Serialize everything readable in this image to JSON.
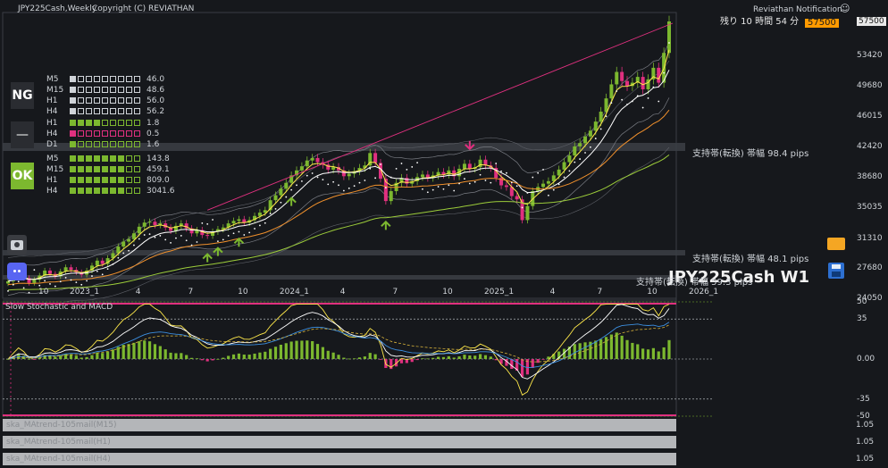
{
  "header": {
    "symbol": "JPY225Cash,Weekly",
    "copyright": "Copyright (C) REVIATHAN",
    "notification": "Reviathan Notification",
    "remaining": "残り 10 時間 54 分",
    "current_price": "57500"
  },
  "watermark": "JPY225Cash W1",
  "badges": {
    "ng": "NG",
    "neutral": "—",
    "ok": "OK"
  },
  "strength_panel": {
    "ng_rows": [
      {
        "tf": "M5",
        "value": "46.0",
        "filled": 1
      },
      {
        "tf": "M15",
        "value": "48.6",
        "filled": 1
      },
      {
        "tf": "H1",
        "value": "56.0",
        "filled": 1
      },
      {
        "tf": "H4",
        "value": "56.2",
        "filled": 1
      }
    ],
    "neutral_rows": [
      {
        "tf": "H1",
        "value": "1.8",
        "color": "green",
        "filled": 4
      },
      {
        "tf": "H4",
        "value": "0.5",
        "color": "pink",
        "filled": 1
      },
      {
        "tf": "D1",
        "value": "1.6",
        "color": "green",
        "filled": 1
      }
    ],
    "ok_rows": [
      {
        "tf": "M5",
        "value": "143.8",
        "filled": 7
      },
      {
        "tf": "M15",
        "value": "459.1",
        "filled": 7
      },
      {
        "tf": "H1",
        "value": "809.0",
        "filled": 7
      },
      {
        "tf": "H4",
        "value": "3041.6",
        "filled": 7
      }
    ]
  },
  "support_labels": [
    "支持帯(転換) 帯幅 98.4 pips",
    "支持帯(転換) 帯幅 48.1 pips",
    "支持帯(転換) 帯幅 59.3 pips"
  ],
  "price_axis": [
    "57500",
    "53420",
    "49680",
    "46015",
    "42420",
    "38680",
    "35035",
    "31310",
    "27680",
    "24050"
  ],
  "osc_axis": [
    "50",
    "35",
    "0.00",
    "-35",
    "-50"
  ],
  "time_axis": [
    "10",
    "2023_1",
    "4",
    "7",
    "10",
    "2024_1",
    "4",
    "7",
    "10",
    "2025_1",
    "4",
    "7",
    "10",
    "2026_1"
  ],
  "subwindow_title": "Slow Stochastic and MACD",
  "indicators": [
    {
      "label": "ska_MAtrend-105mail(M15)",
      "value": "1.05"
    },
    {
      "label": "ska_MAtrend-105mail(H1)",
      "value": "1.05"
    },
    {
      "label": "ska_MAtrend-105mail(H4)",
      "value": "1.05"
    }
  ],
  "colors": {
    "bull": "#7cb82f",
    "bear": "#e0307f",
    "accent": "#ff9a00",
    "grid": "#2a2d33"
  },
  "chart_data": {
    "type": "candlestick",
    "title": "JPY225Cash,Weekly",
    "ylim": [
      24050,
      57500
    ],
    "close": [
      26100,
      26900,
      27300,
      26500,
      25900,
      26300,
      26800,
      27400,
      27000,
      26700,
      27300,
      27800,
      27500,
      27200,
      26900,
      27400,
      28000,
      28600,
      28200,
      28900,
      29500,
      30300,
      30900,
      31200,
      31900,
      32700,
      33200,
      33300,
      32900,
      33100,
      32600,
      32200,
      32800,
      33100,
      32500,
      31900,
      32300,
      31700,
      31600,
      32100,
      32400,
      32600,
      33100,
      33400,
      33600,
      33200,
      33500,
      34000,
      34400,
      34700,
      35900,
      36500,
      37300,
      38000,
      38900,
      39500,
      40000,
      40700,
      41000,
      40500,
      40200,
      39600,
      39900,
      39500,
      38800,
      39100,
      39400,
      39800,
      40100,
      41600,
      40400,
      38500,
      35800,
      37000,
      38000,
      38600,
      37900,
      38200,
      38700,
      39000,
      38600,
      38900,
      39300,
      39000,
      39500,
      38800,
      39700,
      40300,
      39700,
      39900,
      40800,
      40100,
      39800,
      38600,
      37700,
      37500,
      36400,
      36000,
      33500,
      35200,
      37000,
      37500,
      37900,
      38200,
      38900,
      39600,
      40500,
      41300,
      42400,
      42800,
      43600,
      44300,
      45400,
      46600,
      48200,
      49900,
      51400,
      50300,
      49700,
      50100,
      50800,
      49300,
      50500,
      51900,
      50100,
      53700,
      57500
    ],
    "annotations": [
      "support 98.4 pips",
      "support 48.1 pips"
    ]
  }
}
